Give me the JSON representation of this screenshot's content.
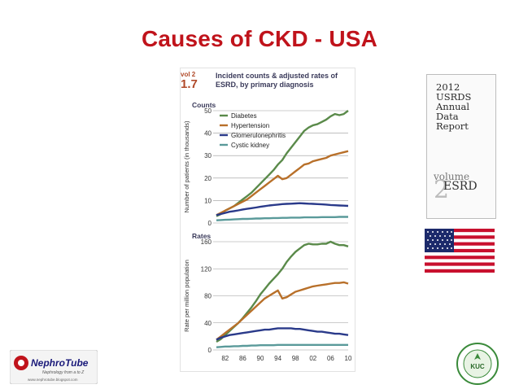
{
  "slide": {
    "title": "Causes of CKD - USA"
  },
  "figure": {
    "vol_label": "vol 2",
    "number": "1.7",
    "title": "Incident counts & adjusted rates of ESRD, by primary diagnosis"
  },
  "colors": {
    "title_red": "#c0131b",
    "diabetes": "#5a8a4a",
    "hypertension": "#b8702a",
    "glomerulonephritis": "#2a3a8a",
    "cystic_kidney": "#5a9a9a"
  },
  "report": {
    "lines": [
      "2012",
      "USRDS",
      "Annual",
      "Data",
      "Report"
    ],
    "volume_word": "volume",
    "volume_num": "2",
    "volume_name": "ESRD"
  },
  "logos": {
    "left_name": "NephroTube",
    "left_tagline": "Nephrology from a to Z",
    "left_url": "www.nephrotube.blogspot.com",
    "right_initials": "KUC"
  },
  "chart_data": [
    {
      "type": "line",
      "title": "Counts",
      "ylabel": "Number of patients (in thousands)",
      "ylim": [
        0,
        50
      ],
      "yticks": [
        0,
        10,
        20,
        30,
        40,
        50
      ],
      "x": [
        1980,
        1981,
        1982,
        1983,
        1984,
        1985,
        1986,
        1987,
        1988,
        1989,
        1990,
        1991,
        1992,
        1993,
        1994,
        1995,
        1996,
        1997,
        1998,
        1999,
        2000,
        2001,
        2002,
        2003,
        2004,
        2005,
        2006,
        2007,
        2008,
        2009,
        2010
      ],
      "legend": "top-left",
      "series": [
        {
          "name": "Diabetes",
          "color_key": "diabetes",
          "values": [
            3,
            4,
            5.5,
            6.5,
            7.5,
            9,
            10.5,
            12,
            13.5,
            15.5,
            17.5,
            19.5,
            21.5,
            23.5,
            26,
            28,
            31,
            33.5,
            36,
            38.5,
            41,
            42.5,
            43.5,
            44,
            45,
            46,
            47.5,
            48.5,
            48,
            48.5,
            50
          ]
        },
        {
          "name": "Hypertension",
          "color_key": "hypertension",
          "values": [
            3.5,
            4.5,
            5.5,
            6.5,
            7.5,
            8.5,
            9.5,
            10.5,
            12,
            13.5,
            15,
            16.5,
            18,
            19.5,
            21,
            19.5,
            20,
            21.5,
            23,
            24.5,
            26,
            26.5,
            27.5,
            28,
            28.5,
            29,
            30,
            30.5,
            31,
            31.5,
            32
          ]
        },
        {
          "name": "Glomerulonephritis",
          "color_key": "glomerulonephritis",
          "values": [
            3.5,
            4,
            4.5,
            5,
            5.3,
            5.6,
            6,
            6.3,
            6.6,
            6.9,
            7.2,
            7.5,
            7.8,
            8,
            8.2,
            8.4,
            8.5,
            8.6,
            8.7,
            8.8,
            8.7,
            8.6,
            8.5,
            8.4,
            8.3,
            8.2,
            8,
            7.9,
            7.8,
            7.7,
            7.6
          ]
        },
        {
          "name": "Cystic kidney",
          "color_key": "cystic_kidney",
          "values": [
            1.2,
            1.3,
            1.4,
            1.5,
            1.6,
            1.7,
            1.8,
            1.8,
            1.9,
            2,
            2,
            2.1,
            2.1,
            2.2,
            2.2,
            2.3,
            2.3,
            2.4,
            2.4,
            2.4,
            2.5,
            2.5,
            2.5,
            2.5,
            2.6,
            2.6,
            2.6,
            2.6,
            2.7,
            2.7,
            2.7
          ]
        }
      ]
    },
    {
      "type": "line",
      "title": "Rates",
      "ylabel": "Rate per million population",
      "ylim": [
        0,
        160
      ],
      "yticks": [
        0,
        40,
        80,
        120,
        160
      ],
      "x": [
        1980,
        1981,
        1982,
        1983,
        1984,
        1985,
        1986,
        1987,
        1988,
        1989,
        1990,
        1991,
        1992,
        1993,
        1994,
        1995,
        1996,
        1997,
        1998,
        1999,
        2000,
        2001,
        2002,
        2003,
        2004,
        2005,
        2006,
        2007,
        2008,
        2009,
        2010
      ],
      "xticks": [
        1982,
        1986,
        1990,
        1994,
        1998,
        2002,
        2006,
        2010
      ],
      "xtick_labels": [
        "82",
        "86",
        "90",
        "94",
        "98",
        "02",
        "06",
        "10"
      ],
      "series": [
        {
          "name": "Diabetes",
          "color_key": "diabetes",
          "values": [
            12,
            16,
            22,
            28,
            34,
            40,
            47,
            55,
            63,
            72,
            82,
            90,
            98,
            105,
            112,
            120,
            130,
            138,
            145,
            150,
            155,
            157,
            156,
            156,
            157,
            157,
            160,
            157,
            155,
            155,
            153
          ]
        },
        {
          "name": "Hypertension",
          "color_key": "hypertension",
          "values": [
            15,
            20,
            25,
            30,
            35,
            40,
            46,
            52,
            58,
            64,
            70,
            76,
            80,
            84,
            88,
            76,
            78,
            82,
            86,
            88,
            90,
            92,
            94,
            95,
            96,
            97,
            98,
            99,
            99,
            100,
            98
          ]
        },
        {
          "name": "Glomerulonephritis",
          "color_key": "glomerulonephritis",
          "values": [
            15,
            18,
            20,
            22,
            23,
            24,
            25,
            26,
            27,
            28,
            29,
            30,
            30,
            31,
            32,
            32,
            32,
            32,
            31,
            31,
            30,
            29,
            28,
            27,
            27,
            26,
            25,
            24,
            24,
            23,
            22
          ]
        },
        {
          "name": "Cystic kidney",
          "color_key": "cystic_kidney",
          "values": [
            4,
            4.5,
            5,
            5,
            5.5,
            5.5,
            6,
            6,
            6.5,
            6.5,
            7,
            7,
            7,
            7,
            7.5,
            7.5,
            7.5,
            7.5,
            7.5,
            7.5,
            7.5,
            7.5,
            7.5,
            7.5,
            7.5,
            7.5,
            7.5,
            7.5,
            7.5,
            7.5,
            7.5
          ]
        }
      ]
    }
  ]
}
